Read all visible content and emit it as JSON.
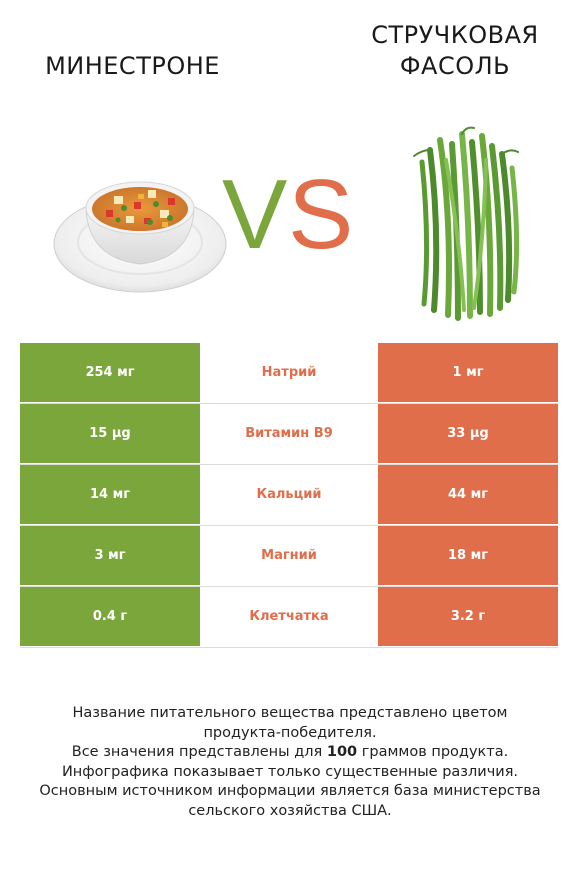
{
  "left_food": {
    "title": "МИНЕСТРОНЕ",
    "image": "minestrone-soup-bowl"
  },
  "right_food": {
    "title_line1": "СТРУЧКОВАЯ",
    "title_line2": "ФАСОЛЬ",
    "image": "green-beans-bunch"
  },
  "vs": {
    "v": "V",
    "s": "S",
    "v_color": "#7aa63c",
    "s_color": "#e06e4b"
  },
  "colors": {
    "left": "#7aa63c",
    "right": "#e06e4b"
  },
  "rows": [
    {
      "left": "254 мг",
      "nutrient": "Натрий",
      "right": "1 мг",
      "winner": "right"
    },
    {
      "left": "15 µg",
      "nutrient": "Витамин B9",
      "right": "33 µg",
      "winner": "right"
    },
    {
      "left": "14 мг",
      "nutrient": "Кальций",
      "right": "44 мг",
      "winner": "right"
    },
    {
      "left": "3 мг",
      "nutrient": "Магний",
      "right": "18 мг",
      "winner": "right"
    },
    {
      "left": "0.4 г",
      "nutrient": "Клетчатка",
      "right": "3.2 г",
      "winner": "right"
    }
  ],
  "footer": {
    "line1": "Название питательного вещества представлено цветом",
    "line2": "продукта-победителя.",
    "line3_pre": "Все значения представлены для ",
    "line3_bold": "100",
    "line3_post": " граммов продукта.",
    "line4": "Инфографика показывает только существенные различия.",
    "line5": "Основным источником информации является база министерства",
    "line6": "сельского хозяйства США."
  }
}
